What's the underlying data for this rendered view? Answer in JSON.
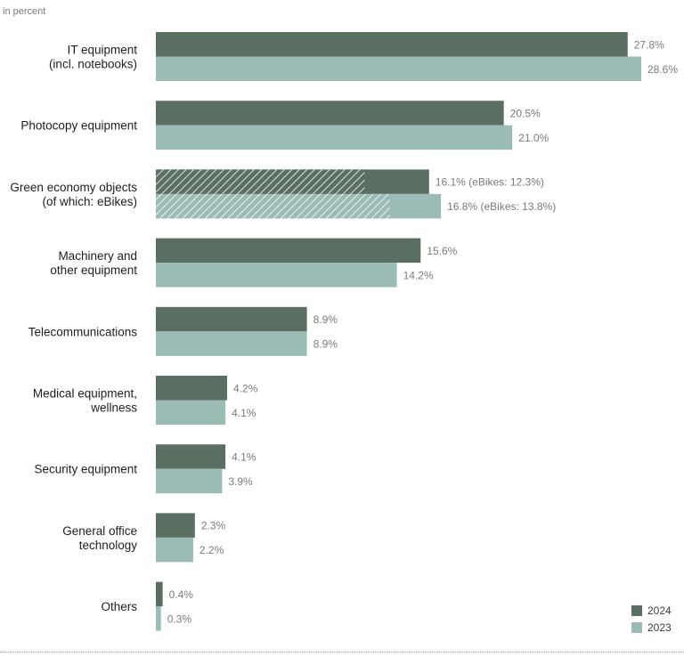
{
  "chart_data": {
    "type": "bar",
    "orientation": "horizontal",
    "unit_label": "in percent",
    "categories": [
      [
        "IT equipment",
        "(incl. notebooks)"
      ],
      [
        "Photocopy equipment"
      ],
      [
        "Green economy objects",
        "(of which: eBikes)"
      ],
      [
        "Machinery and",
        "other equipment"
      ],
      [
        "Telecommunications"
      ],
      [
        "Medical equipment,",
        "wellness"
      ],
      [
        "Security equipment"
      ],
      [
        "General office",
        "technology"
      ],
      [
        "Others"
      ]
    ],
    "series": [
      {
        "name": "2024",
        "color": "#5a6e62",
        "values": [
          27.8,
          20.5,
          16.1,
          15.6,
          8.9,
          4.2,
          4.1,
          2.3,
          0.4
        ],
        "labels": [
          "27.8%",
          "20.5%",
          "16.1% (eBikes: 12.3%)",
          "15.6%",
          "8.9%",
          "4.2%",
          "4.1%",
          "2.3%",
          "0.4%"
        ],
        "sub_values": [
          null,
          null,
          12.3,
          null,
          null,
          null,
          null,
          null,
          null
        ]
      },
      {
        "name": "2023",
        "color": "#9bbcb4",
        "values": [
          28.6,
          21.0,
          16.8,
          14.2,
          8.9,
          4.1,
          3.9,
          2.2,
          0.3
        ],
        "labels": [
          "28.6%",
          "21.0%",
          "16.8% (eBikes: 13.8%)",
          "14.2%",
          "8.9%",
          "4.1%",
          "3.9%",
          "2.2%",
          "0.3%"
        ],
        "sub_values": [
          null,
          null,
          13.8,
          null,
          null,
          null,
          null,
          null,
          null
        ]
      }
    ],
    "xlim": [
      0,
      28.6
    ],
    "grid": false,
    "legend_position": "bottom-right"
  }
}
